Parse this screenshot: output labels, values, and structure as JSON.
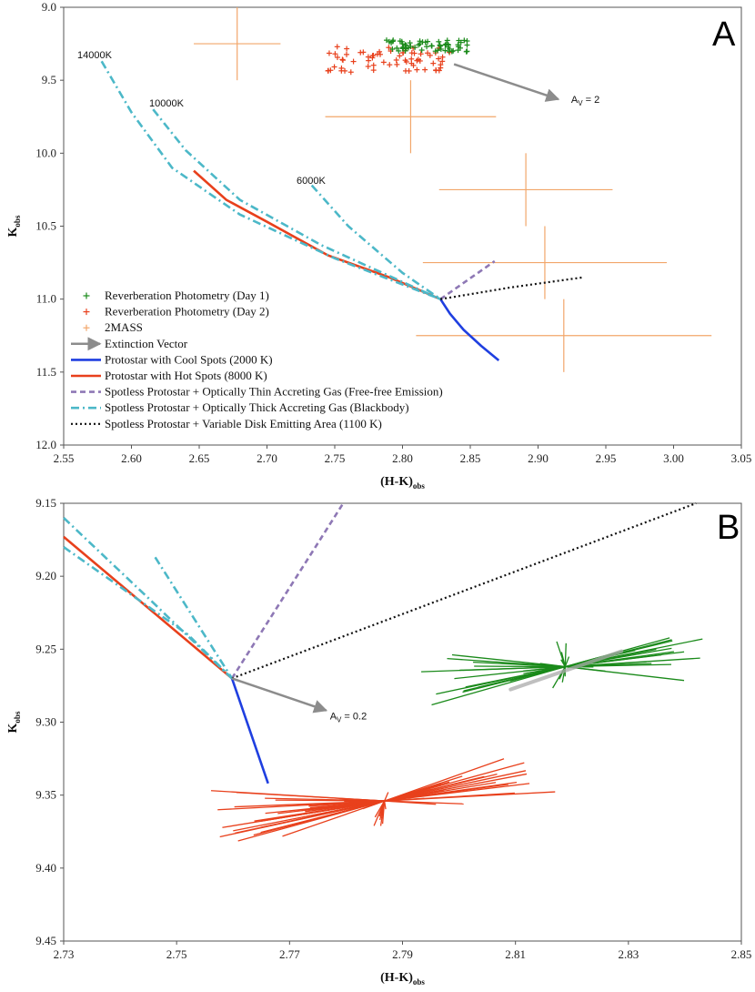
{
  "chart_data": [
    {
      "type": "line",
      "panel": "A",
      "xlabel": "(H-K)",
      "xlabel_sub": "obs",
      "ylabel": "K",
      "ylabel_sub": "obs",
      "xlim": [
        2.55,
        3.05
      ],
      "ylim": [
        9.0,
        12.0
      ],
      "y_inverted": true,
      "x_ticks": [
        "2.55",
        "2.60",
        "2.65",
        "2.70",
        "2.75",
        "2.80",
        "2.85",
        "2.90",
        "2.95",
        "3.00",
        "3.05"
      ],
      "y_ticks": [
        "9.0",
        "9.5",
        "10.0",
        "10.5",
        "11.0",
        "11.5",
        "12.0"
      ],
      "legend": [
        {
          "label": "Reverberation Photometry (Day 1)",
          "marker": "plus",
          "color": "#1a8a1a"
        },
        {
          "label": "Reverberation Photometry (Day 2)",
          "marker": "plus",
          "color": "#e8401c"
        },
        {
          "label": "2MASS",
          "marker": "plus",
          "color": "#f2a66a"
        },
        {
          "label": "Extinction Vector",
          "marker": "arrow",
          "color": "#8c8c8c"
        },
        {
          "label": "Protostar with Cool Spots (2000 K)",
          "marker": "line",
          "color": "#1f3fe0"
        },
        {
          "label": "Protostar with Hot Spots (8000 K)",
          "marker": "line",
          "color": "#e8401c"
        },
        {
          "label": "Spotless Protostar + Optically Thin Accreting Gas (Free-free Emission)",
          "marker": "dash",
          "color": "#8e78b5"
        },
        {
          "label": "Spotless Protostar + Optically Thick Accreting Gas (Blackbody)",
          "marker": "dashdot",
          "color": "#4cb8c8"
        },
        {
          "label": "Spotless Protostar + Variable Disk Emitting Area (1100 K)",
          "marker": "dot",
          "color": "#111111"
        }
      ],
      "series": [
        {
          "name": "Protostar with Cool Spots (2000 K)",
          "color": "#1f3fe0",
          "style": "solid",
          "x": [
            2.828,
            2.835,
            2.845,
            2.858,
            2.871
          ],
          "y": [
            11.0,
            11.1,
            11.21,
            11.32,
            11.42
          ]
        },
        {
          "name": "Protostar with Hot Spots (8000 K)",
          "color": "#e8401c",
          "style": "solid",
          "x": [
            2.646,
            2.67,
            2.7,
            2.745,
            2.79,
            2.828
          ],
          "y": [
            10.12,
            10.32,
            10.47,
            10.7,
            10.85,
            11.0
          ]
        },
        {
          "name": "Spotless Protostar + Optically Thin Accreting Gas (Free-free Emission)",
          "color": "#8e78b5",
          "style": "dash",
          "x": [
            2.828,
            2.848,
            2.868
          ],
          "y": [
            11.0,
            10.87,
            10.74
          ]
        },
        {
          "name": "Blackbody 14000K",
          "color": "#4cb8c8",
          "style": "dashdot",
          "x": [
            2.578,
            2.6,
            2.63,
            2.68,
            2.75,
            2.828
          ],
          "y": [
            9.37,
            9.72,
            10.1,
            10.42,
            10.72,
            11.0
          ]
        },
        {
          "name": "Blackbody 10000K",
          "color": "#4cb8c8",
          "style": "dashdot",
          "x": [
            2.616,
            2.64,
            2.68,
            2.74,
            2.828
          ],
          "y": [
            9.7,
            9.98,
            10.32,
            10.63,
            11.0
          ]
        },
        {
          "name": "Blackbody 6000K",
          "color": "#4cb8c8",
          "style": "dashdot",
          "x": [
            2.733,
            2.76,
            2.8,
            2.828
          ],
          "y": [
            10.22,
            10.5,
            10.82,
            11.0
          ]
        },
        {
          "name": "Spotless Protostar + Variable Disk Emitting Area (1100 K)",
          "color": "#111111",
          "style": "dot",
          "x": [
            2.828,
            2.88,
            2.934
          ],
          "y": [
            11.0,
            10.92,
            10.85
          ]
        }
      ],
      "twomass": [
        {
          "x": 2.678,
          "y": 9.25,
          "xerr": 0.032,
          "yerr": 0.25
        },
        {
          "x": 2.806,
          "y": 9.75,
          "xerr": 0.063,
          "yerr": 0.25
        },
        {
          "x": 2.891,
          "y": 10.25,
          "xerr": 0.064,
          "yerr": 0.25
        },
        {
          "x": 2.905,
          "y": 10.75,
          "xerr": 0.09,
          "yerr": 0.25
        },
        {
          "x": 2.919,
          "y": 11.25,
          "xerr": 0.109,
          "yerr": 0.25
        }
      ],
      "day1_center": {
        "x": 2.818,
        "y": 9.265
      },
      "day2_center": {
        "x": 2.79,
        "y": 9.36
      },
      "extinction": {
        "x0": 2.838,
        "y0": 9.39,
        "x1": 2.915,
        "y1": 9.63,
        "label": "A",
        "label_sub": "V",
        "label_rest": " = 2"
      },
      "temp_labels": [
        "14000K",
        "10000K",
        "6000K"
      ]
    },
    {
      "type": "line",
      "panel": "B",
      "xlabel": "(H-K)",
      "xlabel_sub": "obs",
      "ylabel": "K",
      "ylabel_sub": "obs",
      "xlim": [
        2.73,
        2.85
      ],
      "ylim": [
        9.15,
        9.45
      ],
      "y_inverted": true,
      "x_ticks": [
        "2.73",
        "2.75",
        "2.77",
        "2.79",
        "2.81",
        "2.83",
        "2.85"
      ],
      "y_ticks": [
        "9.15",
        "9.20",
        "9.25",
        "9.30",
        "9.35",
        "9.40",
        "9.45"
      ],
      "series": [
        {
          "name": "Protostar with Cool Spots (2000 K)",
          "color": "#1f3fe0",
          "style": "solid",
          "x": [
            2.7598,
            2.7662
          ],
          "y": [
            9.27,
            9.342
          ]
        },
        {
          "name": "Protostar with Hot Spots (8000 K)",
          "color": "#e8401c",
          "style": "solid",
          "x": [
            2.73,
            2.7598
          ],
          "y": [
            9.173,
            9.27
          ]
        },
        {
          "name": "Spotless Protostar + Optically Thin Accreting Gas (Free-free Emission)",
          "color": "#8e78b5",
          "style": "dash",
          "x": [
            2.7598,
            2.7795
          ],
          "y": [
            9.27,
            9.15
          ]
        },
        {
          "name": "Blackbody 14000K",
          "color": "#4cb8c8",
          "style": "dashdot",
          "x": [
            2.73,
            2.745,
            2.7598
          ],
          "y": [
            9.16,
            9.215,
            9.27
          ]
        },
        {
          "name": "Blackbody 10000K",
          "color": "#4cb8c8",
          "style": "dashdot",
          "x": [
            2.73,
            2.752,
            2.7598
          ],
          "y": [
            9.18,
            9.24,
            9.27
          ]
        },
        {
          "name": "Blackbody 6000K",
          "color": "#4cb8c8",
          "style": "dashdot",
          "x": [
            2.7462,
            2.7598
          ],
          "y": [
            9.187,
            9.27
          ]
        },
        {
          "name": "Spotless Protostar + Variable Disk Emitting Area (1100 K)",
          "color": "#111111",
          "style": "dot",
          "x": [
            2.7598,
            2.842
          ],
          "y": [
            9.27,
            9.15
          ]
        }
      ],
      "day1_center": {
        "x": 2.8188,
        "y": 9.262
      },
      "day2_center": {
        "x": 2.7868,
        "y": 9.354
      },
      "extinction": {
        "x0": 2.7598,
        "y0": 9.27,
        "x1": 2.7765,
        "y1": 9.292,
        "label": "A",
        "label_sub": "V",
        "label_rest": " = 0.2"
      }
    }
  ]
}
